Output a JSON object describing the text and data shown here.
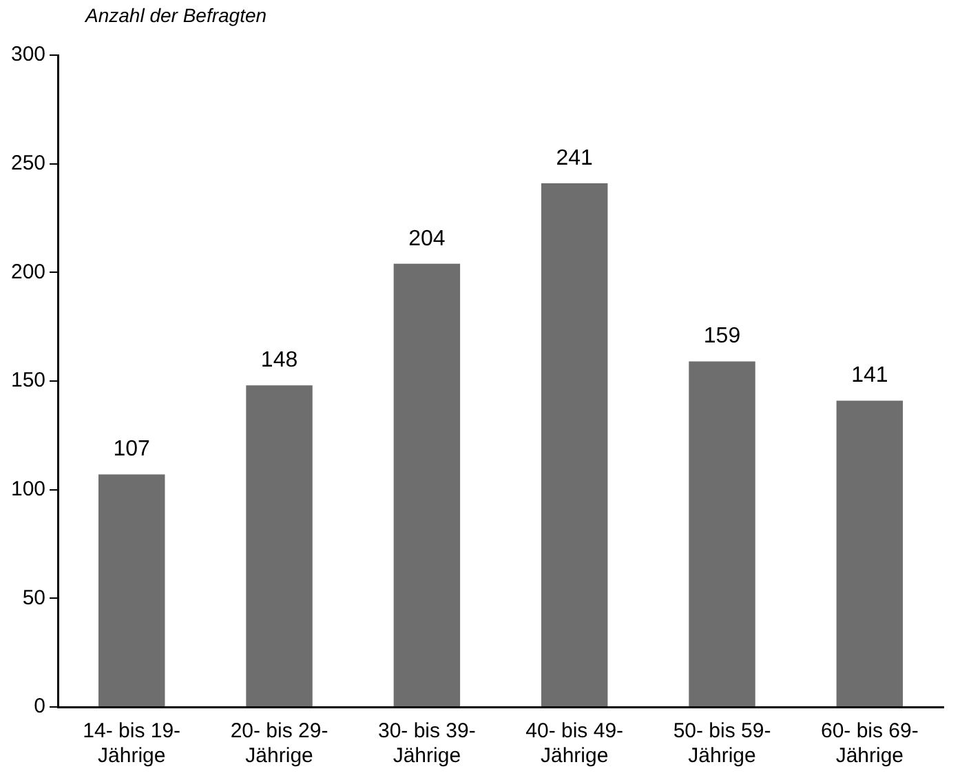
{
  "chart_data": {
    "type": "bar",
    "ylabel": "Anzahl der Befragten",
    "categories": [
      "14- bis 19-\nJährige",
      "20- bis 29-\nJährige",
      "30- bis 39-\nJährige",
      "40- bis 49-\nJährige",
      "50- bis 59-\nJährige",
      "60- bis 69-\nJährige"
    ],
    "values": [
      107,
      148,
      204,
      241,
      159,
      141
    ],
    "color": "#6e6e6e",
    "ylim": [
      0,
      300
    ],
    "yticks": [
      0,
      50,
      100,
      150,
      200,
      250,
      300
    ],
    "grid": false,
    "legend": false,
    "data_labels": true
  }
}
